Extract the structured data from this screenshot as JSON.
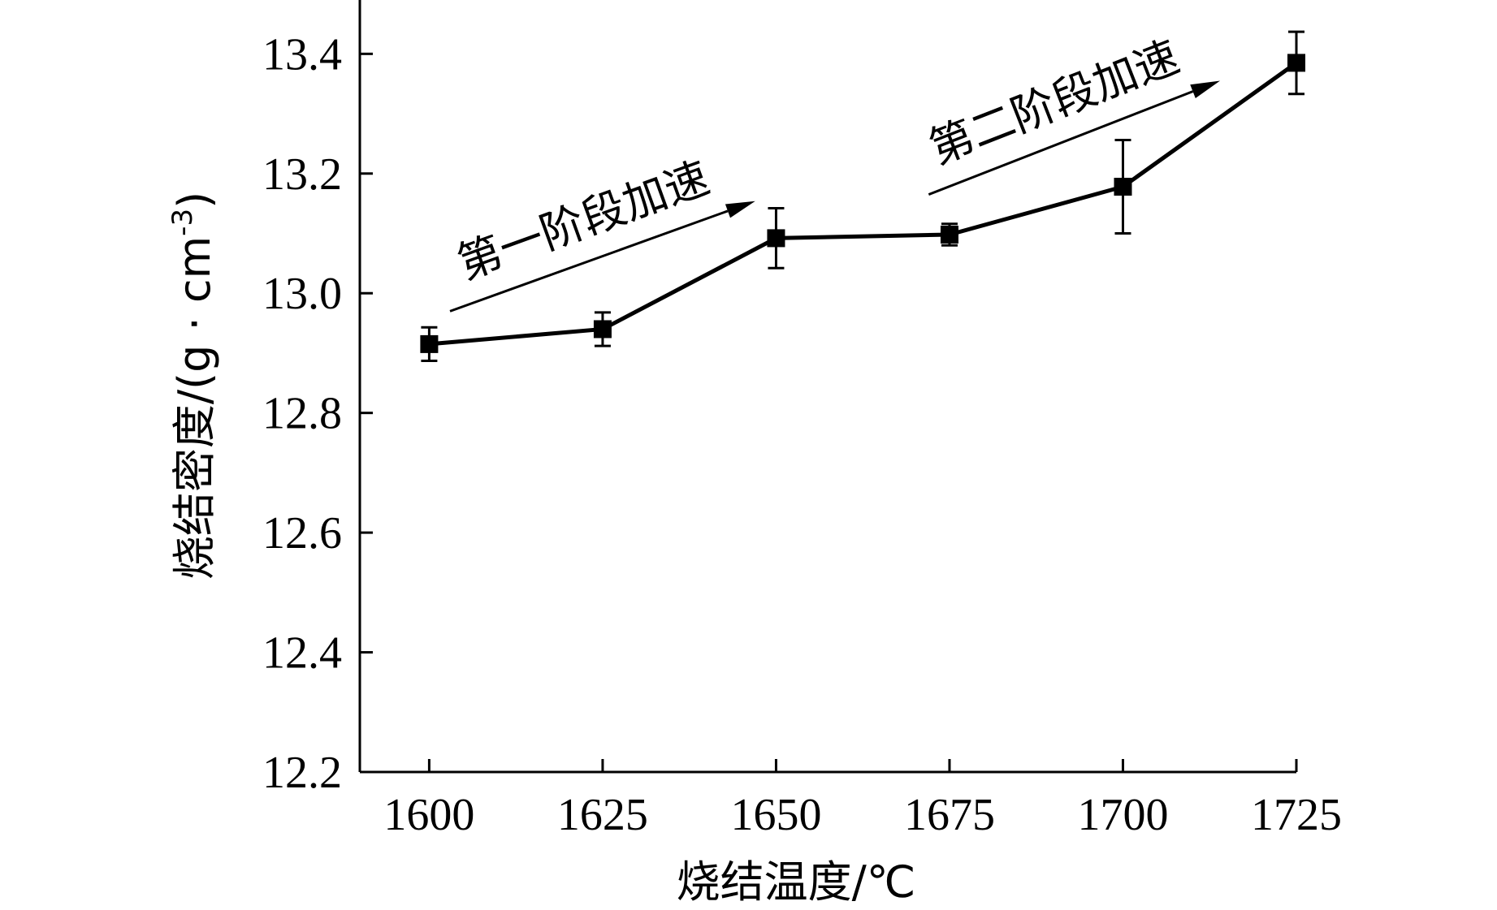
{
  "chart_data": {
    "type": "line",
    "xlabel": "烧结温度/℃",
    "ylabel": "烧结密度/(g · cm",
    "ylabel_superscript": "-3",
    "ylabel_close": ")",
    "x": [
      1600,
      1625,
      1650,
      1675,
      1700,
      1725
    ],
    "xticks": [
      "1600",
      "1625",
      "1650",
      "1675",
      "1700",
      "1725"
    ],
    "yticks": [
      "12.2",
      "12.4",
      "12.6",
      "12.8",
      "13.0",
      "13.2",
      "13.4"
    ],
    "ylim": [
      12.2,
      13.49
    ],
    "xlim": [
      1590,
      1725
    ],
    "grid": false,
    "series": [
      {
        "values": [
          12.915,
          12.94,
          13.092,
          13.098,
          13.178,
          13.385
        ],
        "error": [
          0.028,
          0.028,
          0.05,
          0.018,
          0.078,
          0.052
        ],
        "marker": "square",
        "color": "#000000"
      }
    ],
    "annotations": [
      {
        "text": "第一阶段加速",
        "arrow_from": [
          1603,
          12.97
        ],
        "arrow_to": [
          1647,
          13.154
        ]
      },
      {
        "text": "第二阶段加速",
        "arrow_from": [
          1672,
          13.165
        ],
        "arrow_to": [
          1714,
          13.355
        ]
      }
    ]
  }
}
